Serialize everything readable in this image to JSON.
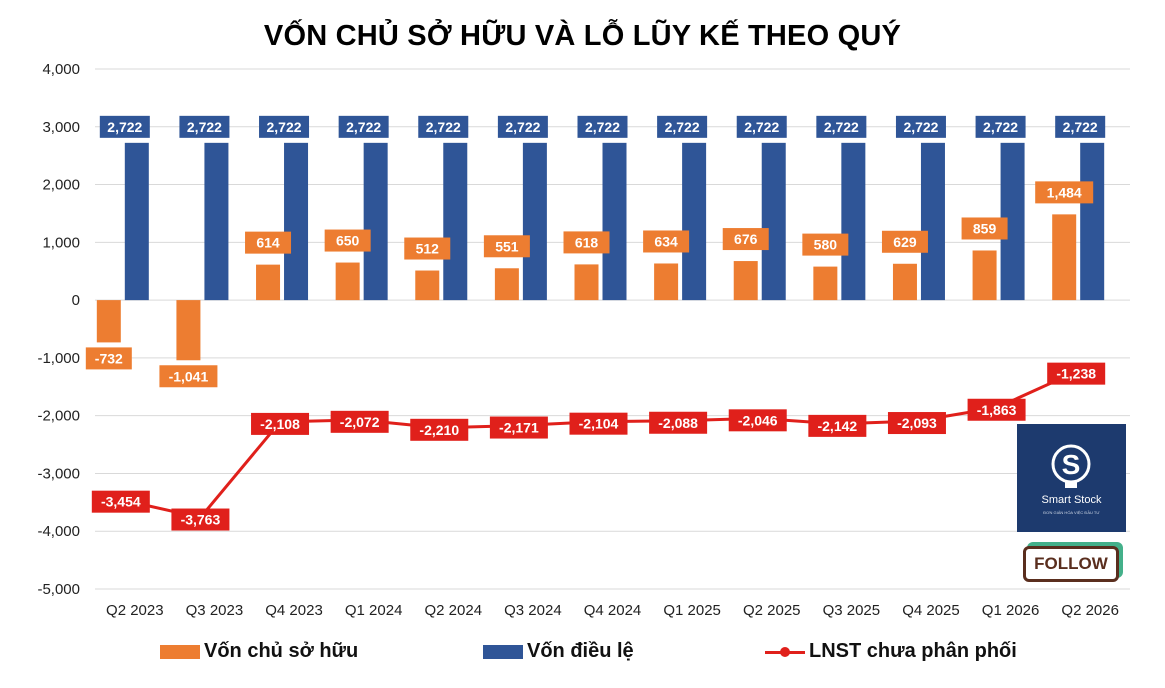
{
  "chart_data": {
    "type": "bar",
    "title": "VỐN CHỦ SỞ HỮU VÀ LỖ LŨY KẾ THEO QUÝ",
    "categories": [
      "Q2 2023",
      "Q3 2023",
      "Q4 2023",
      "Q1 2024",
      "Q2 2024",
      "Q3 2024",
      "Q4 2024",
      "Q1 2025",
      "Q2 2025",
      "Q3 2025",
      "Q4 2025",
      "Q1 2026",
      "Q2 2026"
    ],
    "ylim": [
      -5000,
      4000
    ],
    "yticks": [
      4000,
      3000,
      2000,
      1000,
      0,
      -1000,
      -2000,
      -3000,
      -4000,
      -5000
    ],
    "ytick_labels": [
      "4,000",
      "3,000",
      "2,000",
      "1,000",
      "0",
      "-1,000",
      "-2,000",
      "-3,000",
      "-4,000",
      "-5,000"
    ],
    "grid": true,
    "legend_position": "bottom",
    "series": [
      {
        "name": "Vốn chủ sở hữu",
        "kind": "bar",
        "color": "#ed7d31",
        "values": [
          -732,
          -1041,
          614,
          650,
          512,
          551,
          618,
          634,
          676,
          580,
          629,
          859,
          1484
        ],
        "labels": [
          "-732",
          "-1,041",
          "614",
          "650",
          "512",
          "551",
          "618",
          "634",
          "676",
          "580",
          "629",
          "859",
          "1,484"
        ]
      },
      {
        "name": "Vốn điều lệ",
        "kind": "bar",
        "color": "#2f5597",
        "values": [
          2722,
          2722,
          2722,
          2722,
          2722,
          2722,
          2722,
          2722,
          2722,
          2722,
          2722,
          2722,
          2722
        ],
        "labels": [
          "2,722",
          "2,722",
          "2,722",
          "2,722",
          "2,722",
          "2,722",
          "2,722",
          "2,722",
          "2,722",
          "2,722",
          "2,722",
          "2,722",
          "2,722"
        ]
      },
      {
        "name": "LNST chưa phân phối",
        "kind": "line",
        "color": "#e0201b",
        "values": [
          -3454,
          -3763,
          -2108,
          -2072,
          -2210,
          -2171,
          -2104,
          -2088,
          -2046,
          -2142,
          -2093,
          -1863,
          -1238
        ],
        "labels": [
          "-3,454",
          "-3,763",
          "-2,108",
          "-2,072",
          "-2,210",
          "-2,171",
          "-2,104",
          "-2,088",
          "-2,046",
          "-2,142",
          "-2,093",
          "-1,863",
          "-1,238"
        ]
      }
    ]
  },
  "overlay": {
    "logo_text": "Smart Stock",
    "logo_subtext": "ĐƠN GIẢN HÓA VIỆC ĐẦU TƯ",
    "logo_color": "#1d3a6e",
    "follow_label": "FOLLOW"
  }
}
